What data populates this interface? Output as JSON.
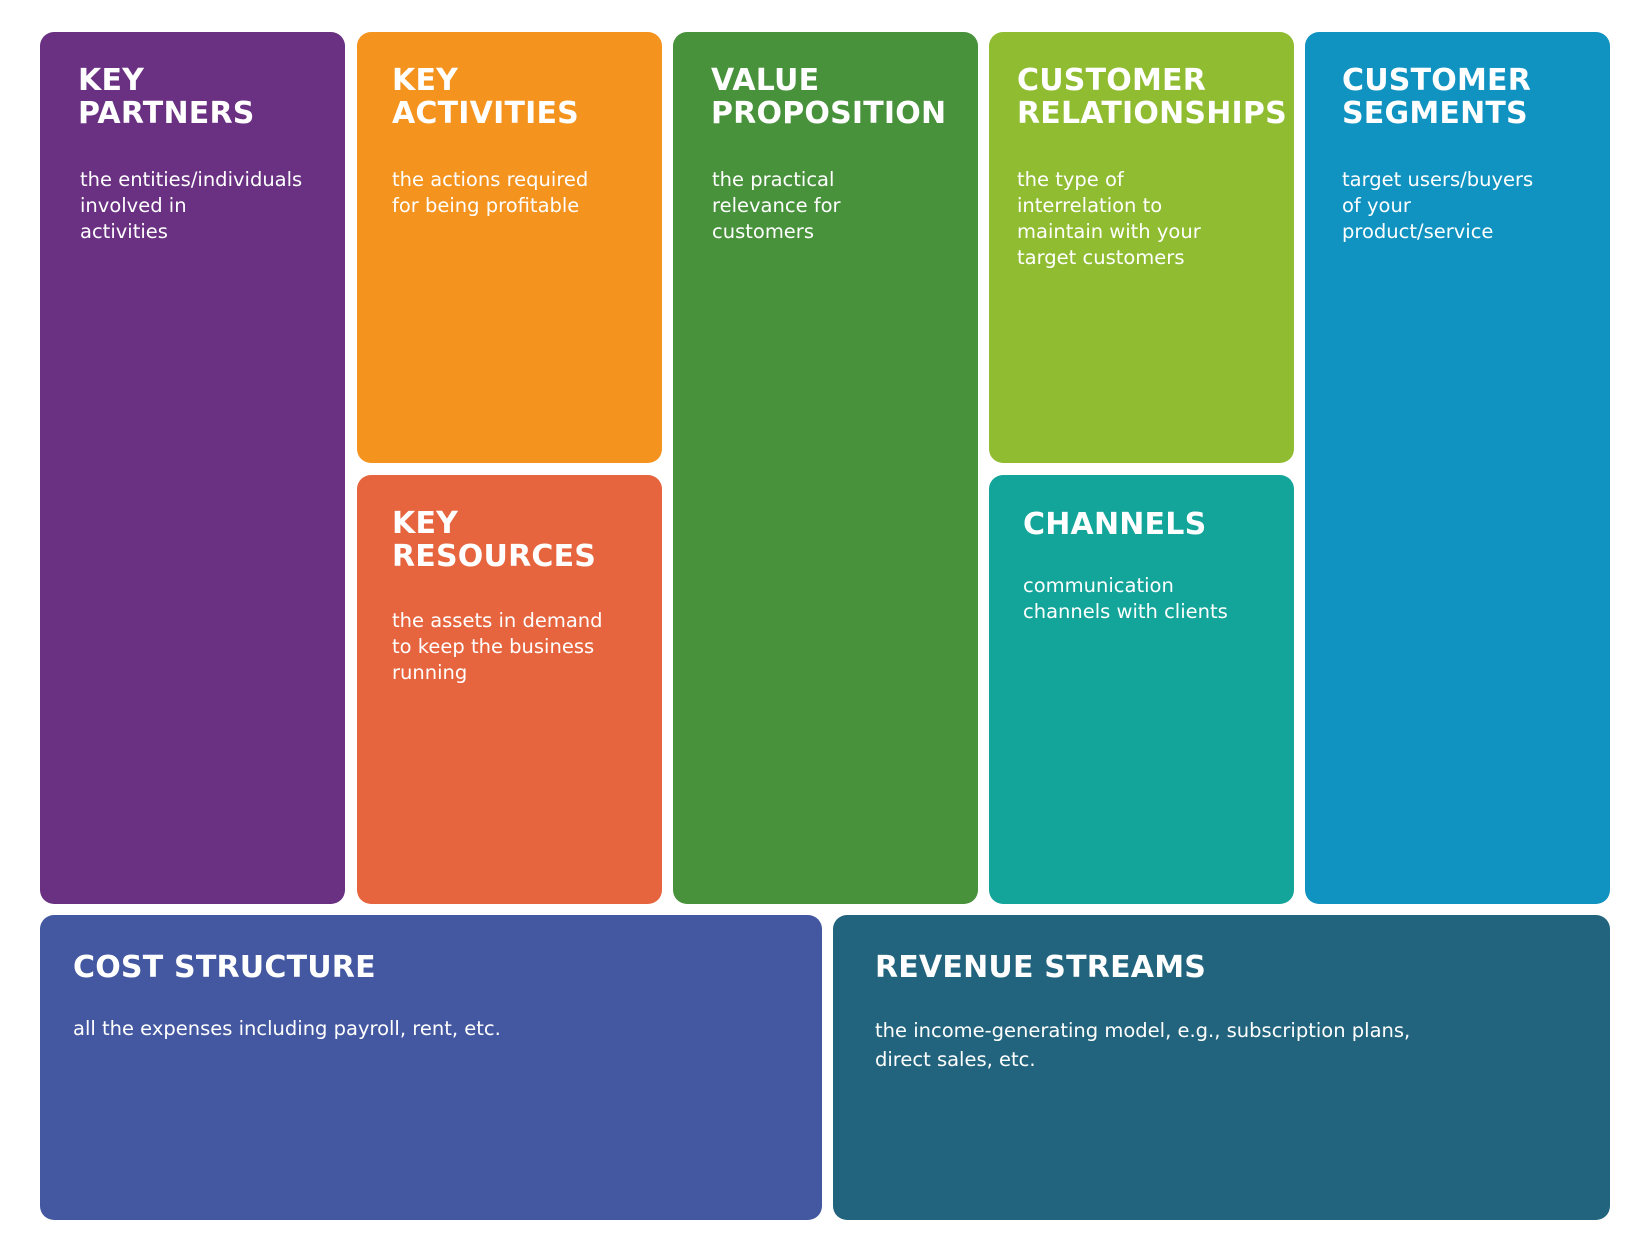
{
  "blocks": {
    "key_partners": {
      "title": "KEY\nPARTNERS",
      "description": "the entities/individuals\ninvolved in\nactivities",
      "color": "#6A3082"
    },
    "key_activities": {
      "title": "KEY\nACTIVITIES",
      "description": "the actions required\nfor being profitable",
      "color": "#F4931E"
    },
    "key_resources": {
      "title": "KEY\nRESOURCES",
      "description": "the assets in demand\nto keep the business\nrunning",
      "color": "#E6653E"
    },
    "value_proposition": {
      "title": "VALUE\nPROPOSITION",
      "description": "the practical\nrelevance for\ncustomers",
      "color": "#48923C"
    },
    "customer_relationships": {
      "title": "CUSTOMER\nRELATIONSHIPS",
      "description": "the type of\ninterrelation to\nmaintain with your\ntarget customers",
      "color": "#90BC32"
    },
    "channels": {
      "title": "CHANNELS",
      "description": "communication\nchannels with clients",
      "color": "#13A59A"
    },
    "customer_segments": {
      "title": "CUSTOMER\nSEGMENTS",
      "description": "target users/buyers\nof your\nproduct/service",
      "color": "#1193C1"
    },
    "cost_structure": {
      "title": "COST STRUCTURE",
      "description": "all the expenses including payroll, rent, etc.",
      "color": "#4358A1"
    },
    "revenue_streams": {
      "title": "REVENUE STREAMS",
      "description": "the income-generating model, e.g., subscription plans,\ndirect sales, etc.",
      "color": "#22647D"
    }
  }
}
